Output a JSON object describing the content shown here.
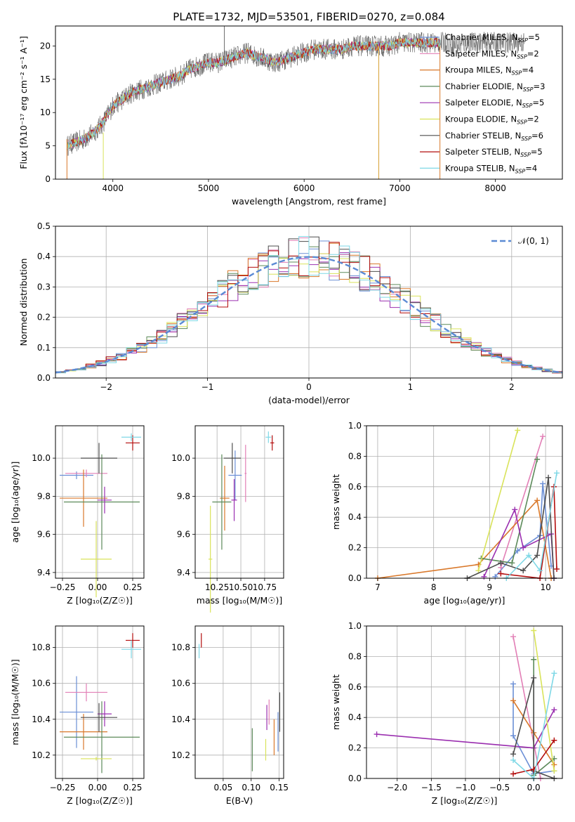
{
  "figure_title": "PLATE=1732, MJD=53501, FIBERID=0270, z=0.084",
  "legend_colors": [
    "#6b8fd6",
    "#e27fb6",
    "#d9782a",
    "#5c8a5a",
    "#9b30b0",
    "#d9e35a",
    "#4d4d4d",
    "#b30d0d",
    "#7fd8e6"
  ],
  "chart_data": [
    {
      "id": "spectrum",
      "type": "line",
      "xlabel": "wavelength [Angstrom, rest frame]",
      "ylabel": "Flux [fλ10⁻¹⁷ erg cm⁻² s⁻¹ A⁻¹]",
      "xlim": [
        3400,
        8700
      ],
      "ylim": [
        0,
        23
      ],
      "xticks": [
        4000,
        5000,
        6000,
        7000,
        8000
      ],
      "yticks": [
        0,
        5,
        10,
        15,
        20
      ],
      "grid": false,
      "legend_position": "top-right",
      "approximate_continuum": {
        "x": [
          3520,
          3600,
          3700,
          3800,
          3900,
          4000,
          4100,
          4200,
          4300,
          4400,
          4500,
          4600,
          4700,
          4800,
          4900,
          5000,
          5100,
          5200,
          5300,
          5400,
          5500,
          5600,
          5700,
          5800,
          5900,
          6000,
          6100,
          6200,
          6300,
          6400,
          6500,
          6600,
          6700,
          6800,
          6900,
          7000,
          7100,
          7200,
          7300,
          7400,
          7500,
          7600,
          7700,
          7800,
          7900,
          8000,
          8100,
          8200,
          8300
        ],
        "y": [
          5,
          5.5,
          6,
          7,
          8.5,
          11,
          12,
          13,
          13.5,
          14,
          14.5,
          15,
          15.5,
          16.5,
          17,
          17.5,
          17.5,
          18,
          18.5,
          19,
          18.5,
          18,
          17.5,
          18,
          18.5,
          19,
          19.5,
          19.5,
          19.5,
          19.5,
          20,
          20,
          20,
          20,
          20,
          20.5,
          20.5,
          20.5,
          20.5,
          20.5,
          20.5,
          20,
          20.5,
          20.5,
          20.5,
          20.5,
          20.5,
          20.5,
          20.5
        ]
      },
      "series": [
        {
          "name": "Chabrier MILES, N_SSP=5",
          "label_main": "Chabrier MILES, N",
          "label_sub": "SSP",
          "label_tail": "=5",
          "color": "#6b8fd6"
        },
        {
          "name": "Salpeter MILES, N_SSP=2",
          "label_main": "Salpeter MILES, N",
          "label_sub": "SSP",
          "label_tail": "=2",
          "color": "#e27fb6"
        },
        {
          "name": "Kroupa MILES, N_SSP=4",
          "label_main": "Kroupa MILES, N",
          "label_sub": "SSP",
          "label_tail": "=4",
          "color": "#d9782a"
        },
        {
          "name": "Chabrier ELODIE, N_SSP=3",
          "label_main": "Chabrier ELODIE, N",
          "label_sub": "SSP",
          "label_tail": "=3",
          "color": "#5c8a5a"
        },
        {
          "name": "Salpeter ELODIE, N_SSP=5",
          "label_main": "Salpeter ELODIE, N",
          "label_sub": "SSP",
          "label_tail": "=5",
          "color": "#9b30b0"
        },
        {
          "name": "Kroupa ELODIE, N_SSP=2",
          "label_main": "Kroupa ELODIE, N",
          "label_sub": "SSP",
          "label_tail": "=2",
          "color": "#d9e35a"
        },
        {
          "name": "Chabrier STELIB, N_SSP=6",
          "label_main": "Chabrier STELIB, N",
          "label_sub": "SSP",
          "label_tail": "=6",
          "color": "#4d4d4d"
        },
        {
          "name": "Salpeter STELIB, N_SSP=5",
          "label_main": "Salpeter STELIB, N",
          "label_sub": "SSP",
          "label_tail": "=5",
          "color": "#b30d0d"
        },
        {
          "name": "Kroupa STELIB, N_SSP=4",
          "label_main": "Kroupa STELIB, N",
          "label_sub": "SSP",
          "label_tail": "=4",
          "color": "#7fd8e6"
        }
      ]
    },
    {
      "id": "residual-histogram",
      "type": "area",
      "xlabel": "(data-model)/error",
      "ylabel": "Normed distribution",
      "xlim": [
        -2.5,
        2.5
      ],
      "ylim": [
        0,
        0.5
      ],
      "xticks": [
        -2,
        -1,
        0,
        1,
        2
      ],
      "yticks": [
        0.0,
        0.1,
        0.2,
        0.3,
        0.4,
        0.5
      ],
      "grid": true,
      "legend_position": "top-right",
      "reference_curve": {
        "name": "𝒩(0, 1)",
        "mean": 0,
        "sigma": 1,
        "color": "#5b8ad4"
      },
      "bin_width": 0.1
    },
    {
      "id": "age-vs-Z",
      "type": "scatter",
      "xlabel": "Z [log₁₀(Z/Z☉)]",
      "ylabel": "age  [log₁₀(age/yr)]",
      "xlim": [
        -0.3,
        0.33
      ],
      "ylim": [
        9.37,
        10.17
      ],
      "xticks": [
        -0.25,
        0.0,
        0.25
      ],
      "yticks": [
        9.4,
        9.6,
        9.8,
        10.0
      ],
      "grid": true,
      "points": [
        {
          "x": -0.15,
          "y": 9.91,
          "xerr": 0.12,
          "yerr": 0.02
        },
        {
          "x": -0.08,
          "y": 9.92,
          "xerr": 0.15,
          "yerr": 0.02
        },
        {
          "x": -0.1,
          "y": 9.79,
          "xerr": 0.17,
          "yerr": 0.15
        },
        {
          "x": 0.03,
          "y": 9.77,
          "xerr": 0.27,
          "yerr": 0.25
        },
        {
          "x": 0.05,
          "y": 9.78,
          "xerr": 0.05,
          "yerr": 0.07
        },
        {
          "x": -0.01,
          "y": 9.47,
          "xerr": 0.11,
          "yerr": 0.2
        },
        {
          "x": 0.01,
          "y": 10.0,
          "xerr": 0.13,
          "yerr": 0.08
        },
        {
          "x": 0.25,
          "y": 10.08,
          "xerr": 0.05,
          "yerr": 0.04
        },
        {
          "x": 0.24,
          "y": 10.11,
          "xerr": 0.07,
          "yerr": 0.02
        }
      ]
    },
    {
      "id": "age-vs-mass",
      "type": "scatter",
      "xlabel": "mass [log₁₀(M/M☉)]",
      "ylabel": "",
      "xlim": [
        10.02,
        10.95
      ],
      "ylim": [
        9.37,
        10.17
      ],
      "xticks": [
        10.25,
        10.5,
        10.75
      ],
      "yticks": [
        9.4,
        9.6,
        9.8,
        10.0
      ],
      "grid": true,
      "points": [
        {
          "x": 10.44,
          "y": 9.91,
          "xerr": 0.07,
          "yerr": 0.13
        },
        {
          "x": 10.55,
          "y": 9.92,
          "xerr": 0.01,
          "yerr": 0.15
        },
        {
          "x": 10.33,
          "y": 9.79,
          "xerr": 0.05,
          "yerr": 0.17
        },
        {
          "x": 10.3,
          "y": 9.77,
          "xerr": 0.1,
          "yerr": 0.25
        },
        {
          "x": 10.43,
          "y": 9.78,
          "xerr": 0.03,
          "yerr": 0.11
        },
        {
          "x": 10.18,
          "y": 9.47,
          "xerr": 0.02,
          "yerr": 0.28
        },
        {
          "x": 10.41,
          "y": 10.0,
          "xerr": 0.09,
          "yerr": 0.08
        },
        {
          "x": 10.83,
          "y": 10.08,
          "xerr": 0.02,
          "yerr": 0.04
        },
        {
          "x": 10.79,
          "y": 10.11,
          "xerr": 0.03,
          "yerr": 0.03
        }
      ]
    },
    {
      "id": "mass-weight-vs-age",
      "type": "line",
      "xlabel": "age  [log₁₀(age/yr)]",
      "ylabel": "mass weight",
      "xlim": [
        6.8,
        10.3
      ],
      "ylim": [
        0,
        1.0
      ],
      "xticks": [
        7,
        8,
        9,
        10
      ],
      "yticks": [
        0.0,
        0.2,
        0.4,
        0.6,
        0.8,
        1.0
      ],
      "grid": true,
      "series": [
        {
          "x": [
            9.1,
            9.5,
            9.9,
            9.95,
            10.1
          ],
          "y": [
            0.01,
            0.18,
            0.28,
            0.62,
            0.08
          ]
        },
        {
          "x": [
            9.2,
            9.95
          ],
          "y": [
            0.07,
            0.93
          ]
        },
        {
          "x": [
            7.0,
            8.8,
            9.85,
            10.1
          ],
          "y": [
            0.0,
            0.09,
            0.51,
            0.0
          ]
        },
        {
          "x": [
            8.85,
            9.4,
            9.85
          ],
          "y": [
            0.13,
            0.1,
            0.78
          ]
        },
        {
          "x": [
            8.9,
            9.45,
            9.6,
            10.1,
            10.15
          ],
          "y": [
            0.01,
            0.45,
            0.2,
            0.29,
            0.0
          ]
        },
        {
          "x": [
            8.8,
            9.5
          ],
          "y": [
            0.05,
            0.97
          ]
        },
        {
          "x": [
            8.6,
            9.2,
            9.6,
            9.85,
            10.05,
            10.15
          ],
          "y": [
            0.0,
            0.1,
            0.05,
            0.15,
            0.66,
            0.0
          ]
        },
        {
          "x": [
            9.2,
            9.9,
            10.15,
            10.2
          ],
          "y": [
            0.03,
            0.0,
            0.6,
            0.06
          ]
        },
        {
          "x": [
            9.3,
            9.7,
            9.9,
            10.2
          ],
          "y": [
            0.0,
            0.15,
            0.05,
            0.69
          ]
        }
      ]
    },
    {
      "id": "mass-vs-Z",
      "type": "scatter",
      "xlabel": "Z [log₁₀(Z/Z☉)]",
      "ylabel": "mass [log₁₀(M/M☉)]",
      "xlim": [
        -0.3,
        0.33
      ],
      "ylim": [
        10.07,
        10.92
      ],
      "xticks": [
        -0.25,
        0.0,
        0.25
      ],
      "yticks": [
        10.2,
        10.4,
        10.6,
        10.8
      ],
      "grid": true,
      "points": [
        {
          "x": -0.15,
          "y": 10.44,
          "xerr": 0.12,
          "yerr": 0.2
        },
        {
          "x": -0.08,
          "y": 10.55,
          "xerr": 0.15,
          "yerr": 0.05
        },
        {
          "x": -0.1,
          "y": 10.33,
          "xerr": 0.17,
          "yerr": 0.1
        },
        {
          "x": 0.03,
          "y": 10.3,
          "xerr": 0.27,
          "yerr": 0.2
        },
        {
          "x": 0.05,
          "y": 10.43,
          "xerr": 0.05,
          "yerr": 0.07
        },
        {
          "x": -0.01,
          "y": 10.18,
          "xerr": 0.11,
          "yerr": 0.01
        },
        {
          "x": 0.01,
          "y": 10.41,
          "xerr": 0.13,
          "yerr": 0.08
        },
        {
          "x": 0.25,
          "y": 10.84,
          "xerr": 0.05,
          "yerr": 0.04
        },
        {
          "x": 0.24,
          "y": 10.79,
          "xerr": 0.07,
          "yerr": 0.05
        }
      ]
    },
    {
      "id": "mass-vs-ebv",
      "type": "scatter",
      "xlabel": "E(B-V)",
      "ylabel": "",
      "xlim": [
        0.0,
        0.158
      ],
      "ylim": [
        10.07,
        10.92
      ],
      "xticks": [
        0.05,
        0.1,
        0.15
      ],
      "yticks": [
        10.2,
        10.4,
        10.6,
        10.8
      ],
      "grid": true,
      "points": [
        {
          "x": 0.148,
          "y": 10.33,
          "xerr": 0,
          "yerr": 0.11
        },
        {
          "x": 0.132,
          "y": 10.44,
          "xerr": 0,
          "yerr": 0.07
        },
        {
          "x": 0.141,
          "y": 10.3,
          "xerr": 0,
          "yerr": 0.1
        },
        {
          "x": 0.102,
          "y": 10.23,
          "xerr": 0,
          "yerr": 0.12
        },
        {
          "x": 0.128,
          "y": 10.41,
          "xerr": 0,
          "yerr": 0.07
        },
        {
          "x": 0.126,
          "y": 10.23,
          "xerr": 0,
          "yerr": 0.06
        },
        {
          "x": 0.151,
          "y": 10.44,
          "xerr": 0,
          "yerr": 0.11
        },
        {
          "x": 0.011,
          "y": 10.84,
          "xerr": 0,
          "yerr": 0.04
        },
        {
          "x": 0.007,
          "y": 10.78,
          "xerr": 0,
          "yerr": 0.04
        }
      ]
    },
    {
      "id": "mass-weight-vs-Z",
      "type": "line",
      "xlabel": "Z [log₁₀(Z/Z☉)]",
      "ylabel": "mass weight",
      "xlim": [
        -2.45,
        0.42
      ],
      "ylim": [
        0,
        1.0
      ],
      "xticks": [
        -2.0,
        -1.5,
        -1.0,
        -0.5,
        0.0
      ],
      "yticks": [
        0.0,
        0.2,
        0.4,
        0.6,
        0.8,
        1.0
      ],
      "grid": true,
      "series": [
        {
          "x": [
            -0.3,
            -0.3,
            0.0,
            0.3
          ],
          "y": [
            0.62,
            0.28,
            0.03,
            0.05
          ]
        },
        {
          "x": [
            -0.3,
            0.1
          ],
          "y": [
            0.93,
            0.0
          ]
        },
        {
          "x": [
            -0.3,
            0.0,
            0.3
          ],
          "y": [
            0.51,
            0.3,
            0.09
          ]
        },
        {
          "x": [
            0.0,
            0.0,
            0.3
          ],
          "y": [
            0.78,
            0.02,
            0.13
          ]
        },
        {
          "x": [
            -2.3,
            0.0,
            0.3
          ],
          "y": [
            0.29,
            0.2,
            0.45
          ]
        },
        {
          "x": [
            0.0,
            0.3
          ],
          "y": [
            0.97,
            0.05
          ]
        },
        {
          "x": [
            -0.3,
            0.0,
            0.0,
            0.3
          ],
          "y": [
            0.16,
            0.66,
            0.05,
            0.0
          ]
        },
        {
          "x": [
            -0.3,
            0.0,
            0.3
          ],
          "y": [
            0.03,
            0.06,
            0.25
          ]
        },
        {
          "x": [
            -0.3,
            0.0,
            0.3
          ],
          "y": [
            0.12,
            0.0,
            0.69
          ]
        }
      ]
    }
  ]
}
